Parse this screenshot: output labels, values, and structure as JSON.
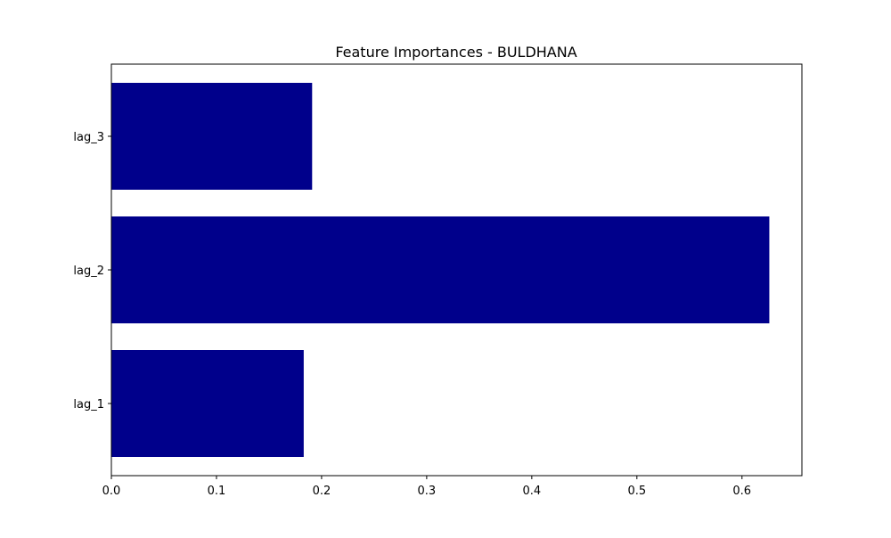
{
  "chart_data": {
    "type": "bar",
    "orientation": "horizontal",
    "title": "Feature Importances - BULDHANA",
    "xlabel": "",
    "ylabel": "",
    "categories": [
      "lag_1",
      "lag_2",
      "lag_3"
    ],
    "values": [
      0.183,
      0.626,
      0.191
    ],
    "xlim": [
      0.0,
      0.657
    ],
    "xticks": [
      0.0,
      0.1,
      0.2,
      0.3,
      0.4,
      0.5,
      0.6
    ],
    "xtick_labels": [
      "0.0",
      "0.1",
      "0.2",
      "0.3",
      "0.4",
      "0.5",
      "0.6"
    ],
    "bar_color": "#00008b",
    "grid": false,
    "legend": false
  }
}
